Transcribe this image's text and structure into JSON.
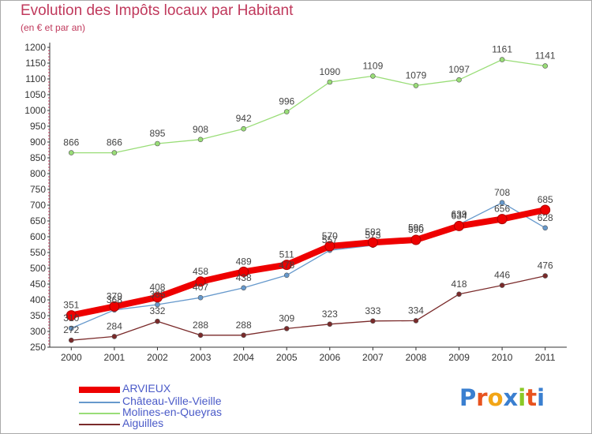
{
  "header": {
    "title": "Evolution des Impôts locaux par Habitant",
    "subtitle": "(en € et par an)"
  },
  "logo": {
    "text": "Proxiti",
    "colors": [
      "#3a7fd0",
      "#e8531f",
      "#f2a516",
      "#3a7fd0",
      "#8ac926",
      "#e8531f",
      "#3a7fd0"
    ]
  },
  "chart_data": {
    "type": "line",
    "title": "Evolution des Impôts locaux par Habitant",
    "subtitle": "(en € et par an)",
    "xlabel": "",
    "ylabel": "",
    "x": [
      "2000",
      "2001",
      "2002",
      "2003",
      "2004",
      "2005",
      "2006",
      "2007",
      "2008",
      "2009",
      "2010",
      "2011"
    ],
    "ylim": [
      250,
      1200
    ],
    "yticks": [
      250,
      300,
      350,
      400,
      450,
      500,
      550,
      600,
      650,
      700,
      750,
      800,
      850,
      900,
      950,
      1000,
      1050,
      1100,
      1150,
      1200
    ],
    "grid": false,
    "legend_position": "bottom-left",
    "series": [
      {
        "name": "ARVIEUX",
        "color": "#ee0000",
        "values": [
          351,
          379,
          408,
          458,
          489,
          511,
          570,
          582,
          590,
          634,
          656,
          685
        ],
        "labels": [
          "351",
          "379",
          "408",
          "458",
          "489",
          "511",
          "570",
          "582",
          "590",
          "634",
          "656",
          "685"
        ]
      },
      {
        "name": "Château-Ville-Vieille",
        "color": "#6699cc",
        "values": [
          310,
          368,
          385,
          407,
          438,
          478,
          557,
          573,
          596,
          639,
          708,
          628
        ],
        "labels": [
          "310",
          "368",
          "385",
          "407",
          "438",
          "478",
          "557",
          "573",
          "596",
          "639",
          "708",
          "628"
        ]
      },
      {
        "name": "Molines-en-Queyras",
        "color": "#99dd77",
        "values": [
          866,
          866,
          895,
          908,
          942,
          996,
          1090,
          1109,
          1079,
          1097,
          1161,
          1141
        ],
        "labels": [
          "866",
          "866",
          "895",
          "908",
          "942",
          "996",
          "1090",
          "1109",
          "1079",
          "1097",
          "1161",
          "1141"
        ]
      },
      {
        "name": "Aiguilles",
        "color": "#7a2a2a",
        "values": [
          272,
          284,
          332,
          288,
          288,
          309,
          323,
          333,
          334,
          418,
          446,
          476
        ],
        "labels": [
          "272",
          "284",
          "332",
          "288",
          "288",
          "309",
          "323",
          "333",
          "334",
          "418",
          "446",
          "476"
        ]
      }
    ]
  }
}
